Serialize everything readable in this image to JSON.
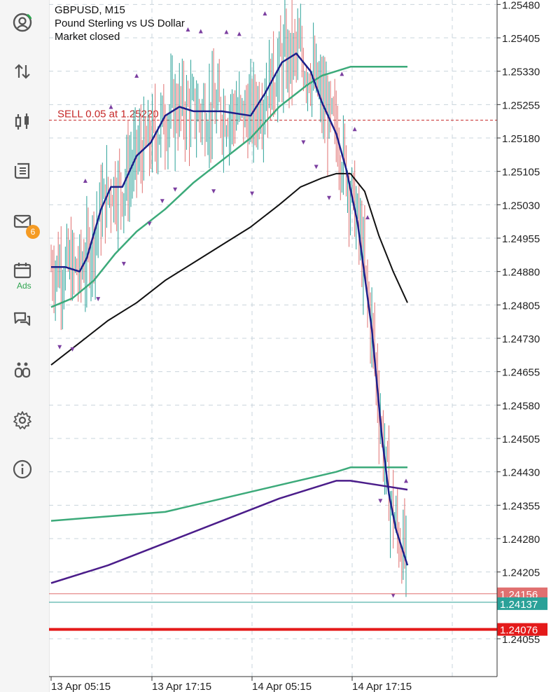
{
  "header": {
    "symbol": "GBPUSD, M15",
    "description": "Pound Sterling vs US Dollar",
    "status": "Market closed"
  },
  "sidebar": {
    "items": [
      {
        "name": "account-icon"
      },
      {
        "name": "trade-arrows-icon"
      },
      {
        "name": "chart-candles-icon"
      },
      {
        "name": "journal-icon"
      },
      {
        "name": "mail-icon"
      },
      {
        "name": "calendar-icon"
      },
      {
        "name": "chat-icon"
      },
      {
        "name": "community-icon"
      },
      {
        "name": "settings-icon"
      },
      {
        "name": "info-icon"
      }
    ],
    "mail_badge": "6",
    "calendar_label": "Ads"
  },
  "colors": {
    "bull": "#2aa198",
    "bear": "#e07070",
    "ma_navy": "#1c1f8a",
    "ma_green": "#3caa7a",
    "ma_black": "#111111",
    "ma_purple": "#4b1d8a",
    "fractal": "#7b3fa0",
    "order_line": "#c62828",
    "grid": "#c9d4dc"
  },
  "chart_data": {
    "type": "candlestick",
    "order_label": "SELL 0.05 at 1.25220",
    "order_price": 1.2522,
    "ask_price": 1.24156,
    "bid_price": 1.24137,
    "level_price": 1.24076,
    "ylim": [
      1.2397,
      1.2549
    ],
    "y_ticks": [
      "1.25480",
      "1.25405",
      "1.25330",
      "1.25255",
      "1.25180",
      "1.25105",
      "1.25030",
      "1.24955",
      "1.24880",
      "1.24805",
      "1.24730",
      "1.24655",
      "1.24580",
      "1.24505",
      "1.24430",
      "1.24355",
      "1.24280",
      "1.24205",
      "1.24055"
    ],
    "x_ticks": [
      "13 Apr 05:15",
      "13 Apr 17:15",
      "14 Apr 05:15",
      "14 Apr 17:15"
    ],
    "ma_navy": [
      [
        0,
        1.2489
      ],
      [
        10,
        1.2489
      ],
      [
        20,
        1.2488
      ],
      [
        25,
        1.2491
      ],
      [
        35,
        1.2502
      ],
      [
        42,
        1.2507
      ],
      [
        50,
        1.2507
      ],
      [
        60,
        1.2514
      ],
      [
        70,
        1.2517
      ],
      [
        80,
        1.2523
      ],
      [
        90,
        1.2525
      ],
      [
        100,
        1.2524
      ],
      [
        120,
        1.2524
      ],
      [
        140,
        1.2523
      ],
      [
        150,
        1.2528
      ],
      [
        162,
        1.2535
      ],
      [
        172,
        1.2537
      ],
      [
        182,
        1.2533
      ],
      [
        190,
        1.2526
      ],
      [
        200,
        1.2519
      ],
      [
        207,
        1.2511
      ],
      [
        215,
        1.2499
      ],
      [
        225,
        1.2475
      ],
      [
        232,
        1.2451
      ],
      [
        237,
        1.2438
      ],
      [
        242,
        1.243
      ],
      [
        250,
        1.2422
      ]
    ],
    "ma_green_fast": [
      [
        0,
        1.248
      ],
      [
        15,
        1.2482
      ],
      [
        30,
        1.2486
      ],
      [
        45,
        1.2492
      ],
      [
        60,
        1.2497
      ],
      [
        80,
        1.2502
      ],
      [
        100,
        1.2508
      ],
      [
        120,
        1.2513
      ],
      [
        140,
        1.2518
      ],
      [
        160,
        1.2525
      ],
      [
        180,
        1.253
      ],
      [
        190,
        1.2532
      ],
      [
        200,
        1.2533
      ],
      [
        210,
        1.2534
      ],
      [
        250,
        1.2534
      ]
    ],
    "ma_black": [
      [
        0,
        1.2467
      ],
      [
        20,
        1.2472
      ],
      [
        40,
        1.2477
      ],
      [
        60,
        1.2481
      ],
      [
        80,
        1.2486
      ],
      [
        100,
        1.249
      ],
      [
        120,
        1.2494
      ],
      [
        140,
        1.2498
      ],
      [
        160,
        1.2503
      ],
      [
        175,
        1.2507
      ],
      [
        190,
        1.2509
      ],
      [
        200,
        1.251
      ],
      [
        210,
        1.251
      ],
      [
        220,
        1.2506
      ],
      [
        230,
        1.2496
      ],
      [
        240,
        1.2488
      ],
      [
        250,
        1.2481
      ]
    ],
    "ma_green_slow": [
      [
        0,
        1.2432
      ],
      [
        40,
        1.2433
      ],
      [
        80,
        1.2434
      ],
      [
        120,
        1.2437
      ],
      [
        160,
        1.244
      ],
      [
        200,
        1.2443
      ],
      [
        210,
        1.2444
      ],
      [
        250,
        1.2444
      ]
    ],
    "ma_purple": [
      [
        0,
        1.2418
      ],
      [
        40,
        1.2422
      ],
      [
        80,
        1.2427
      ],
      [
        120,
        1.2432
      ],
      [
        160,
        1.2437
      ],
      [
        200,
        1.2441
      ],
      [
        210,
        1.2441
      ],
      [
        230,
        1.244
      ],
      [
        250,
        1.2439
      ]
    ]
  }
}
